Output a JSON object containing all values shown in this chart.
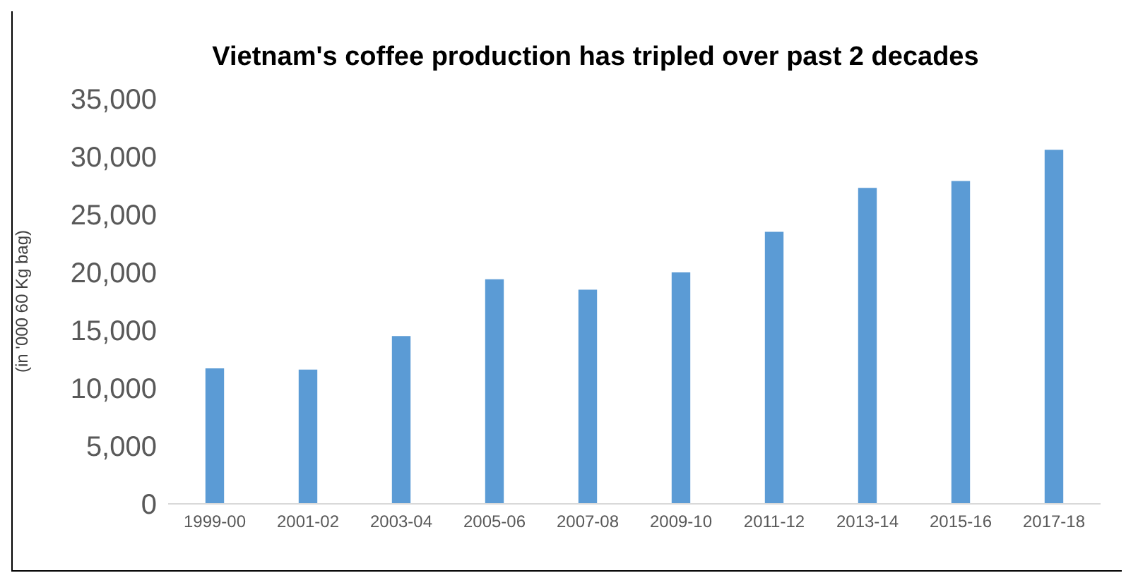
{
  "chart_data": {
    "type": "bar",
    "title": "Vietnam's coffee production has tripled over past 2 decades",
    "ylabel": "(in '000 60 Kg bag)",
    "categories": [
      "1999-00",
      "2001-02",
      "2003-04",
      "2005-06",
      "2007-08",
      "2009-10",
      "2011-12",
      "2013-14",
      "2015-16",
      "2017-18"
    ],
    "values": [
      11700,
      11600,
      14500,
      19400,
      18500,
      20000,
      23500,
      27300,
      27900,
      30600
    ],
    "color": "#5b9bd5",
    "ylim": [
      0,
      35000
    ],
    "yticks": [
      0,
      {
        "value": 5000,
        "label": "5,000"
      },
      {
        "value": 10000,
        "label": "10,000"
      },
      {
        "value": 15000,
        "label": "15,000"
      },
      {
        "value": 20000,
        "label": "20,000"
      },
      {
        "value": 25000,
        "label": "25,000"
      },
      {
        "value": 30000,
        "label": "30,000"
      },
      {
        "value": 35000,
        "label": "35,000"
      }
    ],
    "grid": false
  }
}
